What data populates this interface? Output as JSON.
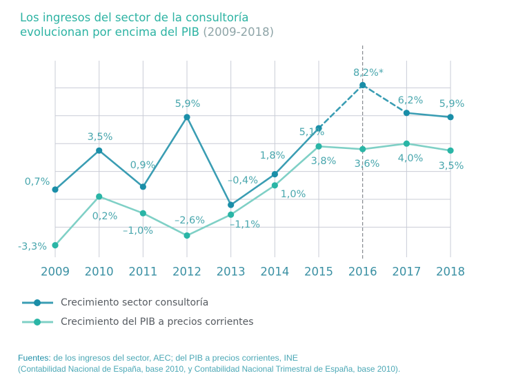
{
  "title": {
    "main_line1": "Los ingresos del sector de la consultoría",
    "main_line2": "evolucionan por encima del PIB",
    "period": "(2009-2018)"
  },
  "chart_data": {
    "type": "line",
    "categories": [
      "2009",
      "2010",
      "2011",
      "2012",
      "2013",
      "2014",
      "2015",
      "2016",
      "2017",
      "2018"
    ],
    "ylim": [
      -4,
      9
    ],
    "y_gridlines": [
      -2,
      0,
      2,
      4,
      6,
      8
    ],
    "grid": true,
    "highlight_year": "2016",
    "legend_placement": "bottom-left",
    "series": [
      {
        "name": "Crecimiento sector consultoría",
        "color": "#3a9db3",
        "marker_color": "#1a8ea8",
        "values": [
          0.7,
          3.5,
          0.9,
          5.9,
          -0.4,
          1.8,
          5.1,
          8.2,
          6.2,
          5.9
        ],
        "labels": [
          "0,7%",
          "3,5%",
          "0,9%",
          "5,9%",
          "–0,4%",
          "1,8%",
          "5,1%",
          "8,2%*",
          "6,2%",
          "5,9%"
        ],
        "dashed_segment": [
          "2015",
          "2017"
        ]
      },
      {
        "name": "Crecimiento del PIB a precios corrientes",
        "color": "#7fd0c6",
        "marker_color": "#2ab5a6",
        "values": [
          -3.3,
          0.2,
          -1.0,
          -2.6,
          -1.1,
          1.0,
          3.8,
          3.6,
          4.0,
          3.5
        ],
        "labels": [
          "-3,3%",
          "0,2%",
          "–1,0%",
          "–2,6%",
          "–1,1%",
          "1,0%",
          "3,8%",
          "3,6%",
          "4,0%",
          "3,5%"
        ]
      }
    ]
  },
  "sources": {
    "label": "Fuentes:",
    "text": "de los ingresos del sector, AEC; del PIB a precios corrientes, INE",
    "line2": "(Contabilidad Nacional de España, base 2010, y Contabilidad Nacional Trimestral de España, base 2010)."
  }
}
